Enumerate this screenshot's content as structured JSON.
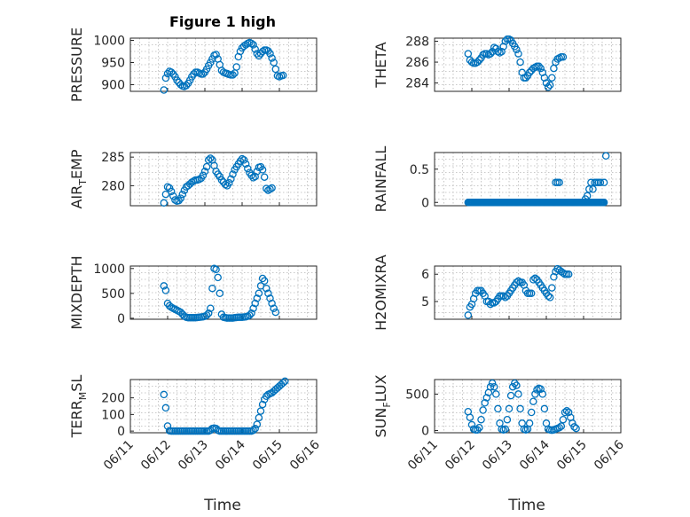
{
  "figure": {
    "title": "Figure 1 high",
    "marker_color": "#0072BD",
    "axis_color": "#262626",
    "x_tick_labels": [
      "06/11",
      "06/12",
      "06/13",
      "06/14",
      "06/15",
      "06/16"
    ],
    "xlabel": "Time"
  },
  "chart_data": [
    {
      "type": "scatter",
      "ylabel": "PRESSURE",
      "ylabel_sub": "",
      "ylabel_tail": "",
      "ylim": [
        885,
        1005
      ],
      "yticks": [
        900,
        950,
        1000
      ],
      "xlim": [
        0,
        5
      ],
      "grid": true,
      "x": [
        0.9,
        0.95,
        1.0,
        1.05,
        1.1,
        1.15,
        1.2,
        1.25,
        1.3,
        1.35,
        1.4,
        1.45,
        1.5,
        1.55,
        1.6,
        1.65,
        1.7,
        1.75,
        1.8,
        1.85,
        1.9,
        1.95,
        2.0,
        2.05,
        2.1,
        2.15,
        2.2,
        2.25,
        2.3,
        2.35,
        2.4,
        2.45,
        2.5,
        2.55,
        2.6,
        2.65,
        2.7,
        2.75,
        2.8,
        2.85,
        2.9,
        2.95,
        3.0,
        3.05,
        3.1,
        3.15,
        3.2,
        3.25,
        3.3,
        3.35,
        3.4,
        3.45,
        3.5,
        3.55,
        3.6,
        3.65,
        3.7,
        3.75,
        3.8,
        3.85,
        3.9,
        3.95,
        4.0,
        4.05,
        4.1,
        4.15,
        4.2,
        4.25,
        4.3,
        4.35,
        4.4,
        4.45,
        4.5,
        4.55,
        4.6
      ],
      "y": [
        888,
        915,
        925,
        930,
        928,
        924,
        918,
        910,
        905,
        900,
        897,
        896,
        898,
        903,
        910,
        918,
        924,
        928,
        928,
        926,
        924,
        924,
        928,
        935,
        943,
        950,
        958,
        966,
        968,
        958,
        945,
        932,
        928,
        926,
        925,
        923,
        922,
        922,
        926,
        940,
        963,
        975,
        983,
        987,
        990,
        993,
        995,
        993,
        990,
        980,
        970,
        965,
        970,
        975,
        978,
        978,
        976,
        970,
        960,
        950,
        935,
        920,
        918,
        920,
        921,
        null,
        null,
        null,
        null,
        null,
        null,
        null,
        null,
        null,
        null
      ]
    },
    {
      "type": "scatter",
      "ylabel": "THETA",
      "ylabel_sub": "",
      "ylabel_tail": "",
      "ylim": [
        283.2,
        288.3
      ],
      "yticks": [
        284,
        286,
        288
      ],
      "xlim": [
        0,
        5
      ],
      "grid": true,
      "x": [
        0.9,
        0.95,
        1.0,
        1.05,
        1.1,
        1.15,
        1.2,
        1.25,
        1.3,
        1.35,
        1.4,
        1.45,
        1.5,
        1.55,
        1.6,
        1.65,
        1.7,
        1.75,
        1.8,
        1.85,
        1.9,
        1.95,
        2.0,
        2.05,
        2.1,
        2.15,
        2.2,
        2.25,
        2.3,
        2.35,
        2.4,
        2.45,
        2.5,
        2.55,
        2.6,
        2.65,
        2.7,
        2.75,
        2.8,
        2.85,
        2.9,
        2.95,
        3.0,
        3.05,
        3.1,
        3.15,
        3.2,
        3.25,
        3.3,
        3.35,
        3.4,
        3.45,
        3.5,
        3.55,
        3.6,
        3.65,
        3.7,
        3.75,
        3.8,
        3.85,
        3.9,
        3.95,
        4.0,
        4.05,
        4.1,
        4.15,
        4.2,
        4.25
      ],
      "y": [
        286.8,
        286.2,
        286.0,
        285.9,
        285.9,
        286.0,
        286.2,
        286.4,
        286.7,
        286.8,
        286.8,
        286.7,
        286.8,
        287.0,
        287.4,
        287.3,
        287.0,
        286.9,
        287.0,
        287.5,
        288.0,
        288.2,
        288.2,
        288.1,
        287.8,
        287.5,
        287.2,
        286.8,
        286.0,
        285.0,
        284.5,
        284.5,
        284.7,
        285.0,
        285.2,
        285.4,
        285.5,
        285.6,
        285.6,
        285.4,
        285.0,
        284.5,
        284.0,
        283.6,
        283.8,
        284.5,
        285.4,
        286.0,
        286.3,
        286.4,
        286.5,
        286.5,
        null,
        null,
        null,
        null,
        null,
        null,
        null,
        null,
        null,
        null,
        null,
        null,
        null,
        null,
        null,
        null
      ]
    },
    {
      "type": "scatter",
      "ylabel": "AIR",
      "ylabel_sub": "T",
      "ylabel_tail": "EMP",
      "ylim": [
        276.5,
        285.8
      ],
      "yticks": [
        280,
        285
      ],
      "xlim": [
        0,
        5
      ],
      "grid": true,
      "x": [
        0.9,
        0.95,
        1.0,
        1.05,
        1.1,
        1.15,
        1.2,
        1.25,
        1.3,
        1.35,
        1.4,
        1.45,
        1.5,
        1.55,
        1.6,
        1.65,
        1.7,
        1.75,
        1.8,
        1.85,
        1.9,
        1.95,
        2.0,
        2.05,
        2.1,
        2.15,
        2.2,
        2.25,
        2.3,
        2.35,
        2.4,
        2.45,
        2.5,
        2.55,
        2.6,
        2.65,
        2.7,
        2.75,
        2.8,
        2.85,
        2.9,
        2.95,
        3.0,
        3.05,
        3.1,
        3.15,
        3.2,
        3.25,
        3.3,
        3.35,
        3.4,
        3.45,
        3.5,
        3.55,
        3.6,
        3.65,
        3.7,
        3.75,
        3.8,
        3.85,
        3.9,
        3.95,
        4.0,
        4.05,
        4.1,
        4.15,
        4.2,
        4.25,
        4.3,
        4.35,
        4.4,
        4.45,
        4.5,
        4.55,
        4.6
      ],
      "y": [
        277.0,
        278.5,
        279.8,
        279.6,
        279.0,
        278.2,
        277.5,
        277.3,
        277.4,
        277.8,
        278.5,
        279.2,
        279.8,
        280.0,
        280.3,
        280.6,
        280.8,
        281.0,
        281.0,
        281.1,
        281.3,
        281.8,
        282.5,
        283.3,
        284.5,
        284.8,
        284.5,
        283.5,
        282.5,
        282.0,
        281.6,
        281.0,
        280.6,
        280.2,
        280.0,
        280.5,
        281.2,
        282.0,
        282.8,
        283.3,
        283.8,
        284.3,
        284.7,
        284.5,
        283.8,
        283.0,
        282.3,
        281.8,
        281.4,
        281.6,
        282.5,
        283.2,
        283.3,
        282.8,
        281.5,
        279.5,
        279.2,
        279.4,
        279.6,
        null,
        null,
        null,
        null,
        null,
        null,
        null,
        null,
        null,
        null,
        null,
        null,
        null,
        null,
        null,
        null
      ]
    },
    {
      "type": "scatter",
      "ylabel": "RAINFALL",
      "ylabel_sub": "",
      "ylabel_tail": "",
      "ylim": [
        -0.05,
        0.75
      ],
      "yticks": [
        0,
        0.5
      ],
      "ytick_labels": [
        "0",
        "0.5"
      ],
      "xlim": [
        0,
        5
      ],
      "grid": true,
      "rain_zero_from": 0.9,
      "rain_zero_to": 4.55,
      "x": [
        3.25,
        3.3,
        3.35,
        4.05,
        4.1,
        4.15,
        4.2,
        4.25,
        4.3,
        4.35,
        4.4,
        4.45,
        4.5,
        4.55,
        4.6
      ],
      "y": [
        0.3,
        0.3,
        0.3,
        0.05,
        0.1,
        0.2,
        0.3,
        0.2,
        0.3,
        0.3,
        0.3,
        0.3,
        0.0,
        0.3,
        0.7
      ]
    },
    {
      "type": "scatter",
      "ylabel": "MIXDEPTH",
      "ylabel_sub": "",
      "ylabel_tail": "",
      "ylim": [
        -20,
        1050
      ],
      "yticks": [
        0,
        500,
        1000
      ],
      "xlim": [
        0,
        5
      ],
      "grid": true,
      "x": [
        0.9,
        0.95,
        1.0,
        1.05,
        1.1,
        1.15,
        1.2,
        1.25,
        1.3,
        1.35,
        1.4,
        1.45,
        1.5,
        1.55,
        1.6,
        1.65,
        1.7,
        1.75,
        1.8,
        1.85,
        1.9,
        1.95,
        2.0,
        2.05,
        2.1,
        2.15,
        2.2,
        2.25,
        2.3,
        2.35,
        2.4,
        2.45,
        2.5,
        2.55,
        2.6,
        2.65,
        2.7,
        2.75,
        2.8,
        2.85,
        2.9,
        2.95,
        3.0,
        3.05,
        3.1,
        3.15,
        3.2,
        3.25,
        3.3,
        3.35,
        3.4,
        3.45,
        3.5,
        3.55,
        3.6,
        3.65,
        3.7,
        3.75,
        3.8,
        3.85,
        3.9,
        3.95,
        4.0,
        4.05,
        4.1,
        4.15,
        4.2,
        4.25,
        4.3,
        4.35,
        4.4,
        4.45,
        4.5,
        4.55,
        4.6
      ],
      "y": [
        650,
        560,
        300,
        250,
        220,
        200,
        180,
        160,
        140,
        120,
        80,
        40,
        20,
        10,
        10,
        10,
        10,
        10,
        15,
        20,
        25,
        30,
        40,
        60,
        100,
        200,
        600,
        1000,
        980,
        820,
        500,
        80,
        20,
        10,
        5,
        5,
        5,
        5,
        10,
        15,
        20,
        20,
        20,
        25,
        30,
        40,
        60,
        100,
        200,
        300,
        400,
        500,
        650,
        800,
        750,
        600,
        500,
        400,
        300,
        200,
        120,
        null,
        null,
        null,
        null,
        null,
        null,
        null,
        null,
        null,
        null,
        null,
        null,
        null,
        null
      ]
    },
    {
      "type": "scatter",
      "ylabel": "H2OMIXRA",
      "ylabel_sub": "",
      "ylabel_tail": "",
      "ylim": [
        4.35,
        6.3
      ],
      "yticks": [
        5,
        6
      ],
      "xlim": [
        0,
        5
      ],
      "grid": true,
      "x": [
        0.9,
        0.95,
        1.0,
        1.05,
        1.1,
        1.15,
        1.2,
        1.25,
        1.3,
        1.35,
        1.4,
        1.45,
        1.5,
        1.55,
        1.6,
        1.65,
        1.7,
        1.75,
        1.8,
        1.85,
        1.9,
        1.95,
        2.0,
        2.05,
        2.1,
        2.15,
        2.2,
        2.25,
        2.3,
        2.35,
        2.4,
        2.45,
        2.5,
        2.55,
        2.6,
        2.65,
        2.7,
        2.75,
        2.8,
        2.85,
        2.9,
        2.95,
        3.0,
        3.05,
        3.1,
        3.15,
        3.2,
        3.25,
        3.3,
        3.35,
        3.4,
        3.45,
        3.5,
        3.55,
        3.6,
        3.65,
        3.7,
        3.75,
        3.8,
        3.85,
        3.9,
        3.95,
        4.0,
        4.05,
        4.1,
        4.15,
        4.2,
        4.25,
        4.3,
        4.35,
        4.4,
        4.45,
        4.5,
        4.55,
        4.6
      ],
      "y": [
        4.5,
        4.8,
        4.9,
        5.1,
        5.3,
        5.4,
        5.4,
        5.4,
        5.3,
        5.2,
        5.0,
        5.0,
        4.9,
        4.95,
        4.95,
        5.0,
        5.1,
        5.2,
        5.2,
        5.2,
        5.15,
        5.2,
        5.3,
        5.4,
        5.5,
        5.6,
        5.7,
        5.75,
        5.7,
        5.7,
        5.6,
        5.4,
        5.3,
        5.3,
        5.3,
        5.8,
        5.85,
        5.8,
        5.7,
        5.6,
        5.5,
        5.4,
        5.3,
        5.2,
        5.15,
        5.5,
        5.9,
        6.1,
        6.2,
        6.15,
        6.1,
        6.05,
        6.0,
        6.0,
        6.0,
        null,
        null,
        null,
        null,
        null,
        null,
        null,
        null,
        null,
        null,
        null,
        null,
        null,
        null,
        null,
        null,
        null,
        null,
        null,
        null
      ]
    },
    {
      "type": "scatter",
      "ylabel": "TERR",
      "ylabel_sub": "M",
      "ylabel_tail": "SL",
      "ylim": [
        -10,
        310
      ],
      "yticks": [
        0,
        100,
        200
      ],
      "xlim": [
        0,
        5
      ],
      "grid": true,
      "show_x_ticklabels": true,
      "x": [
        0.9,
        0.95,
        1.0,
        1.05,
        1.1,
        1.15,
        1.2,
        1.25,
        1.3,
        1.35,
        1.4,
        1.45,
        1.5,
        1.55,
        1.6,
        1.65,
        1.7,
        1.75,
        1.8,
        1.85,
        1.9,
        1.95,
        2.0,
        2.05,
        2.1,
        2.15,
        2.2,
        2.25,
        2.3,
        2.35,
        2.4,
        2.45,
        2.5,
        2.55,
        2.6,
        2.65,
        2.7,
        2.75,
        2.8,
        2.85,
        2.9,
        2.95,
        3.0,
        3.05,
        3.1,
        3.15,
        3.2,
        3.25,
        3.3,
        3.35,
        3.4,
        3.45,
        3.5,
        3.55,
        3.6,
        3.65,
        3.7,
        3.75,
        3.8,
        3.85,
        3.9,
        3.95,
        4.0,
        4.05,
        4.1,
        4.15,
        4.2,
        4.25,
        4.3,
        4.35,
        4.4,
        4.45,
        4.5,
        4.55,
        4.6
      ],
      "y": [
        220,
        140,
        30,
        2,
        0,
        0,
        0,
        0,
        0,
        0,
        0,
        0,
        0,
        0,
        0,
        0,
        0,
        0,
        0,
        0,
        0,
        0,
        0,
        0,
        0,
        5,
        15,
        18,
        15,
        5,
        0,
        0,
        0,
        0,
        0,
        0,
        0,
        0,
        0,
        0,
        0,
        0,
        0,
        0,
        0,
        0,
        0,
        0,
        5,
        15,
        40,
        80,
        120,
        160,
        190,
        210,
        220,
        225,
        230,
        240,
        250,
        260,
        270,
        280,
        290,
        300,
        null,
        null,
        null,
        null,
        null,
        null,
        null,
        null,
        null
      ]
    },
    {
      "type": "scatter",
      "ylabel": "SUN",
      "ylabel_sub": "F",
      "ylabel_tail": "LUX",
      "ylim": [
        -30,
        700
      ],
      "yticks": [
        0,
        500
      ],
      "xlim": [
        0,
        5
      ],
      "grid": true,
      "show_x_ticklabels": true,
      "x": [
        0.9,
        0.95,
        1.0,
        1.05,
        1.1,
        1.15,
        1.2,
        1.25,
        1.3,
        1.35,
        1.4,
        1.45,
        1.5,
        1.55,
        1.6,
        1.65,
        1.7,
        1.75,
        1.8,
        1.85,
        1.9,
        1.95,
        2.0,
        2.05,
        2.1,
        2.15,
        2.2,
        2.25,
        2.3,
        2.35,
        2.4,
        2.45,
        2.5,
        2.55,
        2.6,
        2.65,
        2.7,
        2.75,
        2.8,
        2.85,
        2.9,
        2.95,
        3.0,
        3.05,
        3.1,
        3.15,
        3.2,
        3.25,
        3.3,
        3.35,
        3.4,
        3.45,
        3.5,
        3.55,
        3.6,
        3.65,
        3.7,
        3.75,
        3.8,
        3.85,
        3.9,
        3.95,
        4.0,
        4.05,
        4.1,
        4.15,
        4.2,
        4.25,
        4.3,
        4.35,
        4.4,
        4.45,
        4.5,
        4.55,
        4.6
      ],
      "y": [
        260,
        180,
        80,
        20,
        10,
        10,
        40,
        150,
        280,
        380,
        450,
        520,
        600,
        650,
        600,
        500,
        300,
        100,
        20,
        10,
        20,
        150,
        300,
        480,
        600,
        650,
        620,
        500,
        300,
        100,
        20,
        10,
        20,
        100,
        250,
        400,
        500,
        560,
        580,
        570,
        500,
        300,
        100,
        20,
        10,
        5,
        10,
        20,
        30,
        40,
        60,
        150,
        250,
        270,
        250,
        180,
        100,
        50,
        30,
        null,
        null,
        null,
        null,
        null,
        null,
        null,
        null,
        null,
        null,
        null,
        null,
        null,
        null,
        null,
        null
      ]
    }
  ]
}
